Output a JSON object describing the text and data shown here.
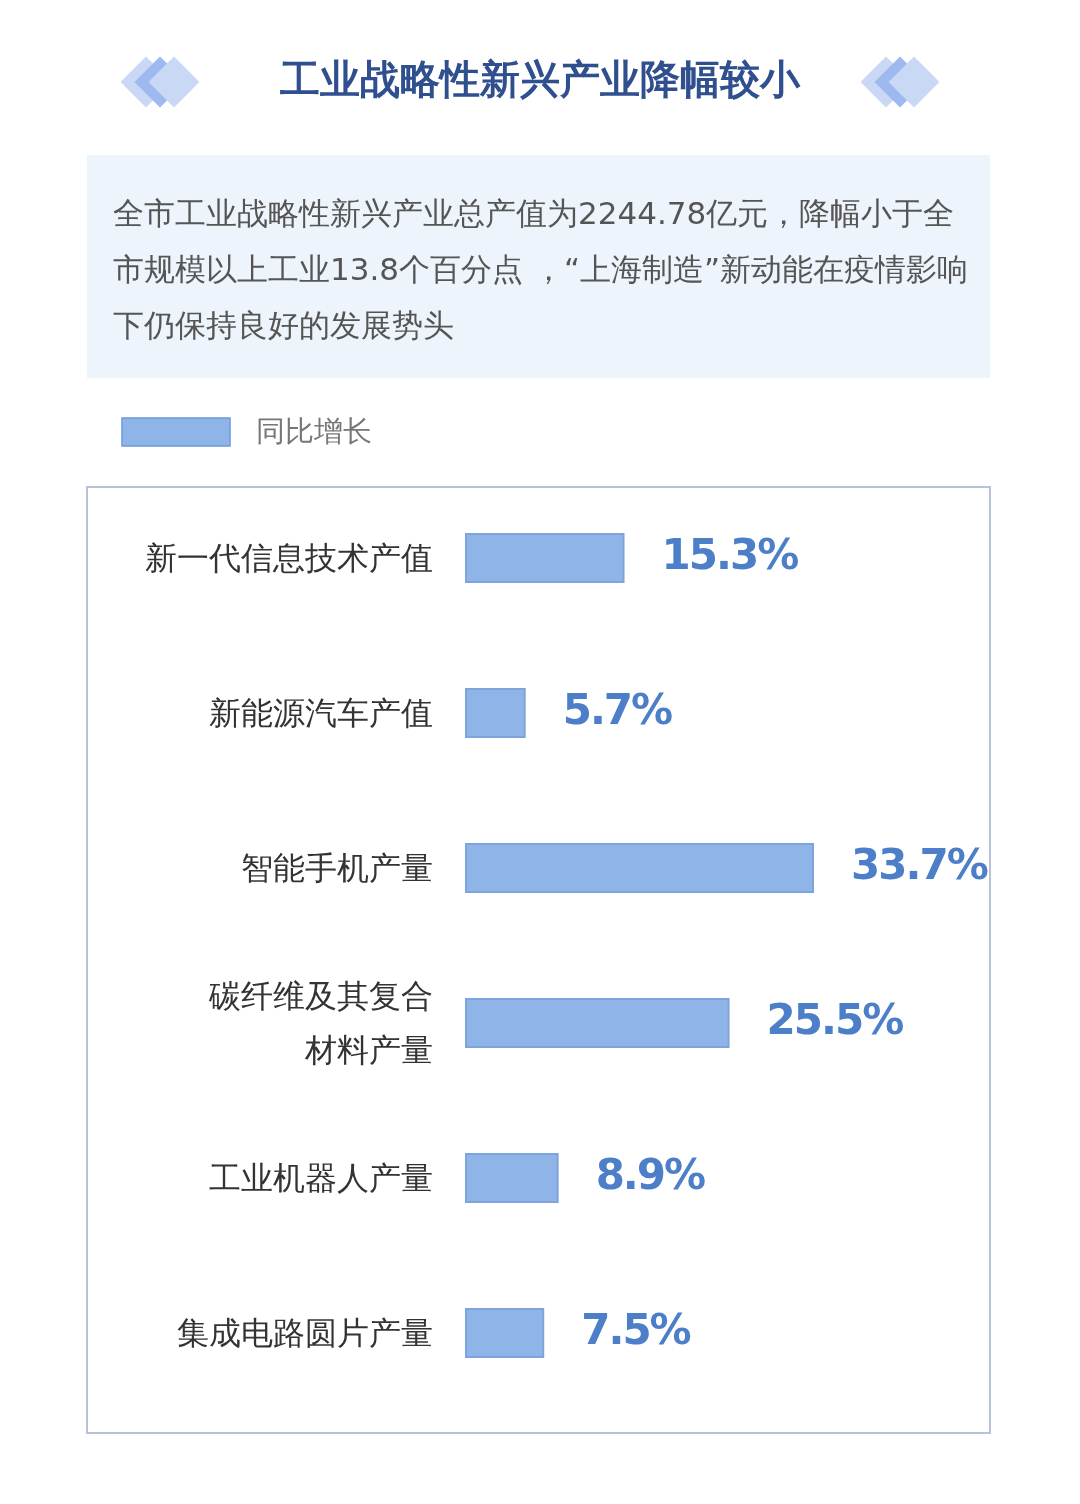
{
  "chart_data": {
    "type": "bar",
    "orientation": "horizontal",
    "title": "工业战略性新兴产业降幅较小",
    "subtitle": "全市工业战略性新兴产业总产值为2244.78亿元，降幅小于全市规模以上工业13.8个百分点 ，“上海制造”新动能在疫情影响下仍保持良好的发展势头",
    "categories": [
      "新一代信息技术产值",
      "新能源汽车产值",
      "智能手机产量",
      "碳纤维及其复合材料产量",
      "工业机器人产量",
      "集成电路圆片产量"
    ],
    "series": [
      {
        "name": "同比增长",
        "color": "#8fb4e8",
        "values": [
          15.3,
          5.7,
          33.7,
          25.5,
          8.9,
          7.5
        ],
        "value_labels": [
          "15.3%",
          "5.7%",
          "33.7%",
          "25.5%",
          "8.9%",
          "7.5%"
        ]
      }
    ],
    "legend": "top left"
  }
}
